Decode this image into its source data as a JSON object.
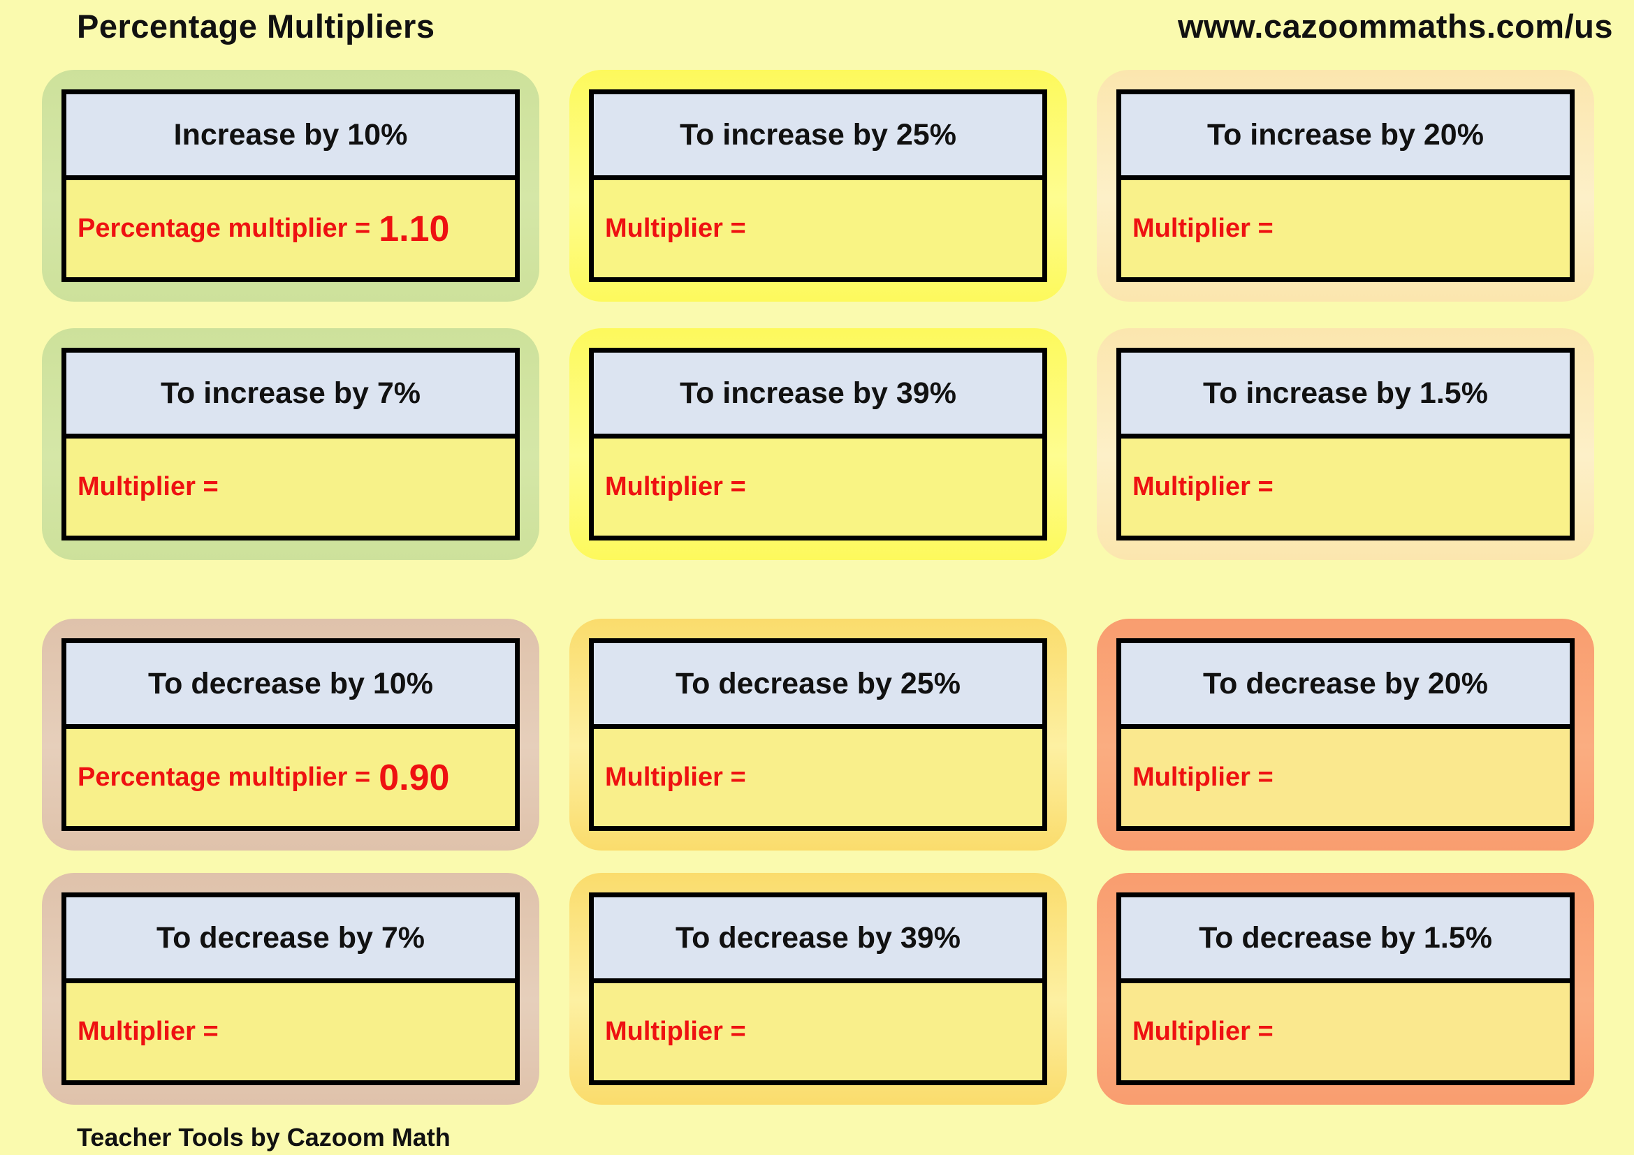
{
  "page": {
    "title": "Percentage Multipliers",
    "url": "www.cazoommaths.com/us",
    "footer": "Teacher Tools by Cazoom Math",
    "bg_color": "#FAFAAE",
    "red_color": "#EE1111",
    "header_fill": "#DCE4F1"
  },
  "cards": [
    {
      "id": "increase-10",
      "header_label": "Increase by 10%",
      "body_label": "Percentage multiplier =",
      "value": "1.10",
      "accent_color": "#CDE19B",
      "accent_light": "#D5E7A7",
      "body_fill": "#F7F289"
    },
    {
      "id": "increase-25",
      "header_label": "To increase by 25%",
      "body_label": "Multiplier =",
      "value": "",
      "accent_color": "#FDF95C",
      "accent_light": "#FEFD90",
      "body_fill": "#F9F484"
    },
    {
      "id": "increase-20",
      "header_label": "To increase by 20%",
      "body_label": "Multiplier =",
      "value": "",
      "accent_color": "#FBE6AE",
      "accent_light": "#FDF0C8",
      "body_fill": "#F9F18A"
    },
    {
      "id": "increase-7",
      "header_label": "To increase by 7%",
      "body_label": "Multiplier =",
      "value": "",
      "accent_color": "#CDE19B",
      "accent_light": "#D5E7A7",
      "body_fill": "#F7F289"
    },
    {
      "id": "increase-39",
      "header_label": "To increase by 39%",
      "body_label": "Multiplier =",
      "value": "",
      "accent_color": "#FDF95C",
      "accent_light": "#FEFD90",
      "body_fill": "#F9F484"
    },
    {
      "id": "increase-1-5",
      "header_label": "To increase by 1.5%",
      "body_label": "Multiplier =",
      "value": "",
      "accent_color": "#FBE6AE",
      "accent_light": "#FDF0C8",
      "body_fill": "#F9F18A"
    },
    {
      "id": "decrease-10",
      "header_label": "To decrease by 10%",
      "body_label": "Percentage multiplier =",
      "value": "0.90",
      "accent_color": "#DFC2AB",
      "accent_light": "#E6CFBB",
      "body_fill": "#F8F08A"
    },
    {
      "id": "decrease-25",
      "header_label": "To decrease by 25%",
      "body_label": "Multiplier =",
      "value": "",
      "accent_color": "#FADC6C",
      "accent_light": "#FDF0A2",
      "body_fill": "#F9EF8B"
    },
    {
      "id": "decrease-20",
      "header_label": "To decrease by 20%",
      "body_label": "Multiplier =",
      "value": "",
      "accent_color": "#F99D6F",
      "accent_light": "#FAAD81",
      "body_fill": "#FAE88E"
    },
    {
      "id": "decrease-7",
      "header_label": "To decrease by 7%",
      "body_label": "Multiplier =",
      "value": "",
      "accent_color": "#DFC2AB",
      "accent_light": "#E6CFBB",
      "body_fill": "#F8F08A"
    },
    {
      "id": "decrease-39",
      "header_label": "To decrease by 39%",
      "body_label": "Multiplier =",
      "value": "",
      "accent_color": "#FADC6C",
      "accent_light": "#FDF0A2",
      "body_fill": "#F9EF8B"
    },
    {
      "id": "decrease-1-5",
      "header_label": "To decrease by 1.5%",
      "body_label": "Multiplier =",
      "value": "",
      "accent_color": "#F99D6F",
      "accent_light": "#FAAD81",
      "body_fill": "#FAE88E"
    }
  ]
}
